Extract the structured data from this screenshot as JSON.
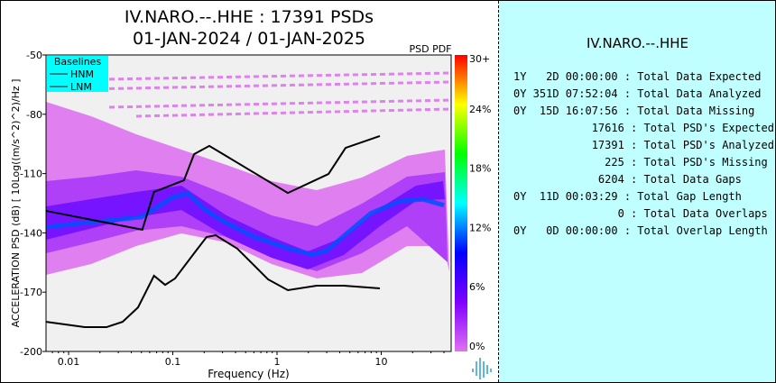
{
  "header": {
    "title": "IV.NARO.--.HHE : 17391 PSDs",
    "dates": "01-JAN-2024 / 01-JAN-2025",
    "pdf_label": "PSD PDF"
  },
  "chart_data": {
    "type": "heatmap",
    "xlabel": "Frequency (Hz)",
    "ylabel": "ACCELERATION PSD (dB) [ 10Log((m/s^2)^2)/Hz ]",
    "xscale": "log",
    "xlim": [
      0.0061,
      47
    ],
    "ylim": [
      -200,
      -50
    ],
    "xticks": [
      {
        "v": 0.01,
        "label": "0.01"
      },
      {
        "v": 0.1,
        "label": "0.1"
      },
      {
        "v": 1,
        "label": "1"
      },
      {
        "v": 10,
        "label": "10"
      }
    ],
    "yticks": [
      {
        "v": -50,
        "label": "-50"
      },
      {
        "v": -80,
        "label": "-80"
      },
      {
        "v": -110,
        "label": "-110"
      },
      {
        "v": -140,
        "label": "-140"
      },
      {
        "v": -170,
        "label": "-170"
      },
      {
        "v": -200,
        "label": "-200"
      }
    ],
    "colorbar": {
      "ticks": [
        "0%",
        "6%",
        "12%",
        "18%",
        "24%",
        "30+"
      ],
      "colors": [
        "#e070f0",
        "#8000ff",
        "#0000ff",
        "#00ffff",
        "#00ff00",
        "#ffff00",
        "#ff0000"
      ]
    },
    "legend": {
      "title": "Baselines",
      "entries": [
        "HNM",
        "LNM"
      ],
      "placement": "top-left",
      "bg": "#00ffff"
    },
    "background": "#f0f0f0",
    "hnm": {
      "freq": [
        0.0061,
        0.051,
        0.066,
        0.128,
        0.16,
        0.224,
        1.27,
        3.12,
        4.55,
        9.7
      ],
      "db": [
        -128.9,
        -138.4,
        -119.3,
        -113.4,
        -100.2,
        -96.0,
        -119.8,
        -110.2,
        -97.0,
        -91.0
      ]
    },
    "lnm": {
      "freq": [
        0.0061,
        0.0143,
        0.0231,
        0.033,
        0.0464,
        0.066,
        0.0844,
        0.105,
        0.163,
        0.211,
        0.258,
        0.416,
        0.82,
        1.27,
        2.4,
        4.37,
        9.7
      ],
      "db": [
        -185.0,
        -187.7,
        -187.7,
        -185.0,
        -177.7,
        -161.7,
        -166.3,
        -163.1,
        -149.8,
        -142.1,
        -141.2,
        -148.0,
        -163.5,
        -169.0,
        -166.7,
        -166.7,
        -168.1
      ]
    },
    "mode": {
      "freq": [
        0.0061,
        0.05,
        0.1,
        0.14,
        0.2,
        0.3,
        0.6,
        1.3,
        2.2,
        3.0,
        4.5,
        8,
        15,
        25,
        40
      ],
      "db": [
        -137,
        -132,
        -122,
        -120,
        -128,
        -134,
        -142,
        -148,
        -151,
        -149,
        -141,
        -130,
        -124,
        -123,
        -126
      ]
    }
  },
  "stats": {
    "title": "IV.NARO.--.HHE",
    "rows": [
      "1Y   2D 00:00:00 : Total Data Expected",
      "0Y 351D 07:52:04 : Total Data Analyzed",
      "0Y  15D 16:07:56 : Total Data Missing",
      "            17616 : Total PSD's Expected",
      "            17391 : Total PSD's Analyzed",
      "              225 : Total PSD's Missing",
      "             6204 : Total Data Gaps",
      "0Y  11D 00:03:29 : Total Gap Length",
      "                0 : Total Data Overlaps",
      "0Y   0D 00:00:00 : Total Overlap Length"
    ]
  }
}
